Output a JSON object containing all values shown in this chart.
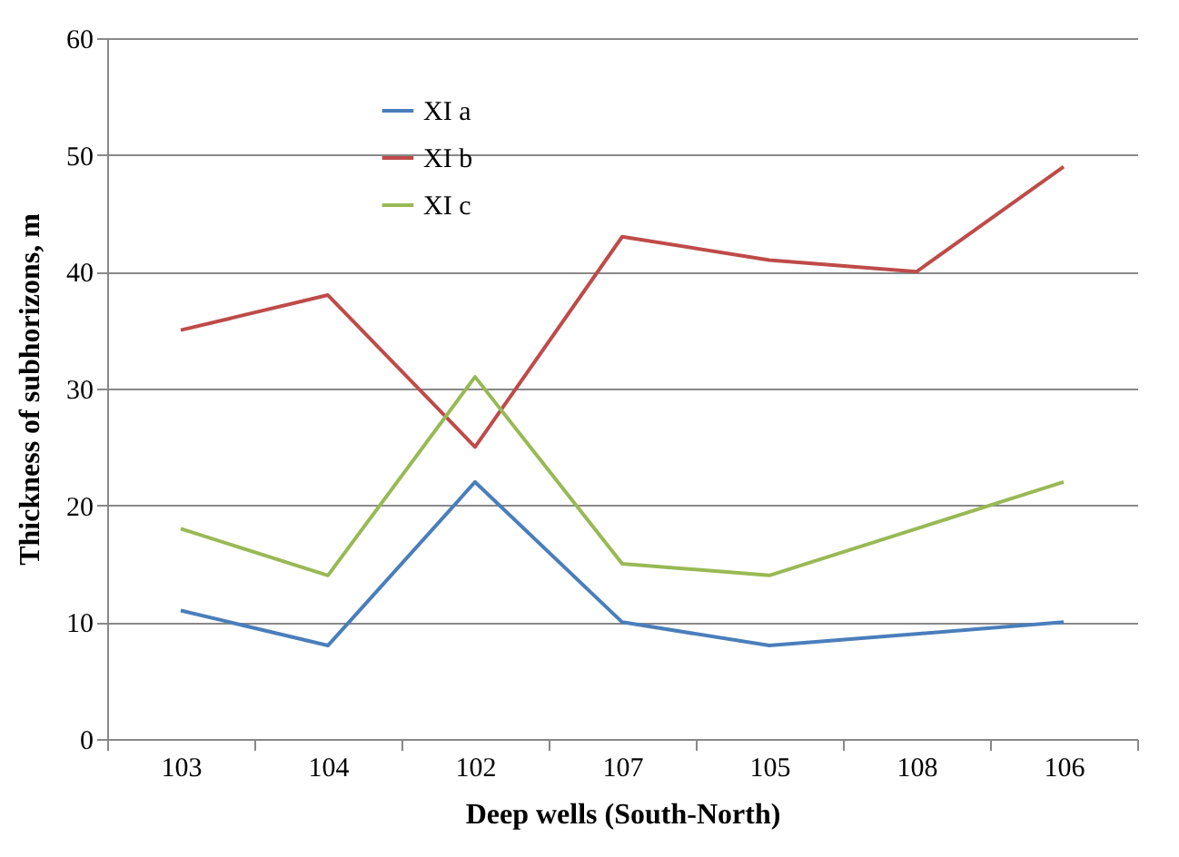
{
  "chart_data": {
    "type": "line",
    "xlabel": "Deep wells (South-North)",
    "ylabel": "Thickness of subhorizons, m",
    "categories": [
      "103",
      "104",
      "102",
      "107",
      "105",
      "108",
      "106"
    ],
    "series": [
      {
        "name": "XI a",
        "color": "#4a7ebb",
        "values": [
          11,
          8,
          22,
          10,
          8,
          9,
          10
        ]
      },
      {
        "name": "XI b",
        "color": "#be4b48",
        "values": [
          35,
          38,
          25,
          43,
          41,
          40,
          49
        ]
      },
      {
        "name": "XI c",
        "color": "#98b954",
        "values": [
          18,
          14,
          31,
          15,
          14,
          18,
          22
        ]
      }
    ],
    "ylim": [
      0,
      60
    ],
    "yticks": [
      0,
      10,
      20,
      30,
      40,
      50,
      60
    ],
    "grid": "y",
    "legend": "top left",
    "marker": "none",
    "line_style": "solid"
  }
}
